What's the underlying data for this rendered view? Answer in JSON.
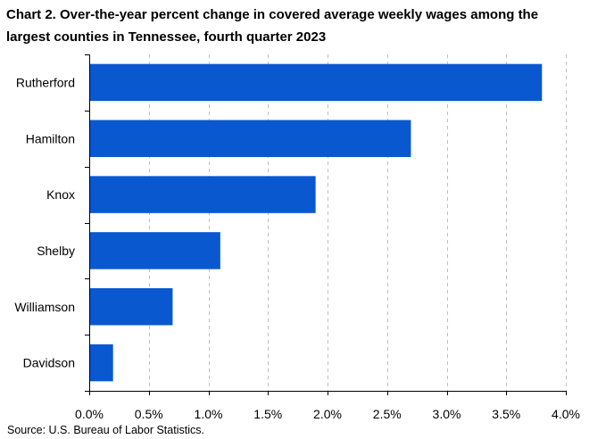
{
  "chart_data": {
    "type": "bar",
    "orientation": "horizontal",
    "title": "Chart 2. Over-the-year percent change in covered average weekly wages among the largest counties in Tennessee, fourth quarter 2023",
    "categories": [
      "Rutherford",
      "Hamilton",
      "Knox",
      "Shelby",
      "Williamson",
      "Davidson"
    ],
    "values": [
      3.8,
      2.7,
      1.9,
      1.1,
      0.7,
      0.2
    ],
    "xlim": [
      0,
      4.0
    ],
    "x_ticks": [
      0.0,
      0.5,
      1.0,
      1.5,
      2.0,
      2.5,
      3.0,
      3.5,
      4.0
    ],
    "x_tick_labels": [
      "0.0%",
      "0.5%",
      "1.0%",
      "1.5%",
      "2.0%",
      "2.5%",
      "3.0%",
      "3.5%",
      "4.0%"
    ],
    "xlabel": "",
    "ylabel": "",
    "grid": "vertical dashed",
    "legend": "none",
    "bar_color": "#0a58d0",
    "grid_color": "#bfbfbf",
    "axis_color": "#000000",
    "source": "Source: U.S. Bureau of Labor Statistics."
  }
}
